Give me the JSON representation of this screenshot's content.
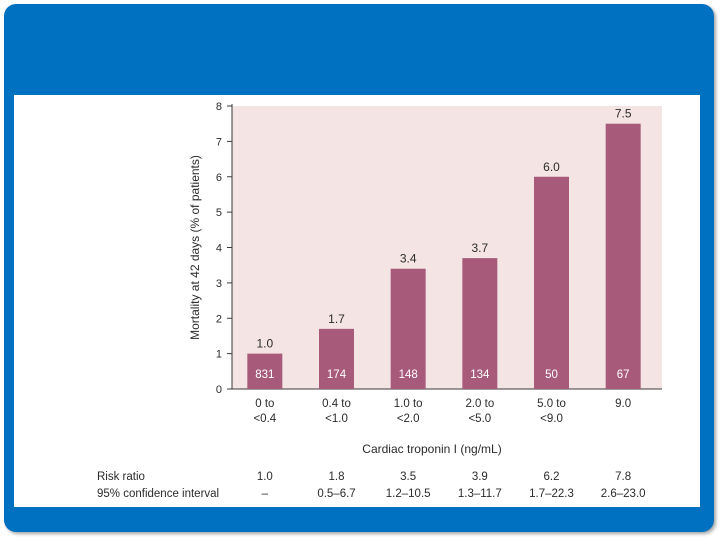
{
  "chart_data": {
    "type": "bar",
    "title": "",
    "xlabel": "Cardiac troponin I (ng/mL)",
    "ylabel": "Mortality at 42 days (% of patients)",
    "ylim": [
      0,
      8
    ],
    "yticks": [
      "0",
      "1",
      "2",
      "3",
      "4",
      "5",
      "6",
      "7",
      "8"
    ],
    "categories": [
      [
        "0 to",
        "<0.4"
      ],
      [
        "0.4 to",
        "<1.0"
      ],
      [
        "1.0 to",
        "<2.0"
      ],
      [
        "2.0 to",
        "<5.0"
      ],
      [
        "5.0 to",
        "<9.0"
      ],
      [
        "9.0"
      ]
    ],
    "values": [
      1.0,
      1.7,
      3.4,
      3.7,
      6.0,
      7.5
    ],
    "value_labels": [
      "1.0",
      "1.7",
      "3.4",
      "3.7",
      "6.0",
      "7.5"
    ],
    "patient_counts": [
      "831",
      "174",
      "148",
      "134",
      "50",
      "67"
    ],
    "risk_ratio_label": "Risk ratio",
    "risk_ratios": [
      "1.0",
      "1.8",
      "3.5",
      "3.9",
      "6.2",
      "7.8"
    ],
    "ci_label": "95% confidence interval",
    "confidence_intervals": [
      "–",
      "0.5–6.7",
      "1.2–10.5",
      "1.3–11.7",
      "1.7–22.3",
      "2.6–23.0"
    ],
    "colors": {
      "bar": "#a85a7a",
      "plot_background": "#f4e4e3",
      "frame": "#0070c0"
    }
  }
}
